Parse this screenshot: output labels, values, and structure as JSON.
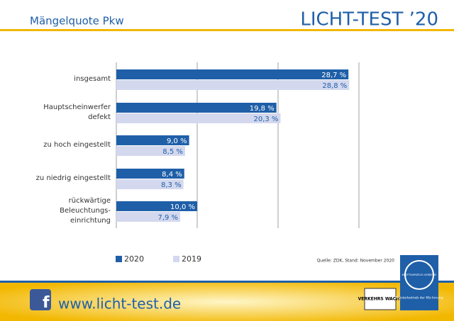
{
  "header": {
    "subtitle": "Mängelquote Pkw",
    "brand": "LICHT-TEST ’20"
  },
  "chart_data": {
    "type": "bar",
    "orientation": "horizontal",
    "categories": [
      "insgesamt",
      "Hauptscheinwerfer\ndefekt",
      "zu hoch eingestellt",
      "zu niedrig eingestellt",
      "rückwärtige\nBeleuchtungs-\neinrichtung"
    ],
    "series": [
      {
        "name": "2020",
        "color": "#1f5fa8",
        "values": [
          28.7,
          19.8,
          9.0,
          8.4,
          10.0
        ],
        "value_labels": [
          "28,7 %",
          "19,8 %",
          "9,0 %",
          "8,4 %",
          "10,0 %"
        ]
      },
      {
        "name": "2019",
        "color": "#d3d8ee",
        "values": [
          28.8,
          20.3,
          8.5,
          8.3,
          7.9
        ],
        "value_labels": [
          "28,8 %",
          "20,3 %",
          "8,5 %",
          "8,3 %",
          "7,9 %"
        ]
      }
    ],
    "xlim": [
      0,
      30
    ],
    "xticks": [
      0,
      10,
      20,
      30
    ],
    "grid": true,
    "source": "Quelle: ZDK, Stand: November 2020"
  },
  "footer": {
    "url": "www.licht-test.de",
    "logo1": "VERKEHRS WACHT",
    "logo2_ring": "KRAFTFAHRZEUG GEWERBE",
    "logo2_text": "Meisterbetrieb der Kfz-Innung"
  }
}
